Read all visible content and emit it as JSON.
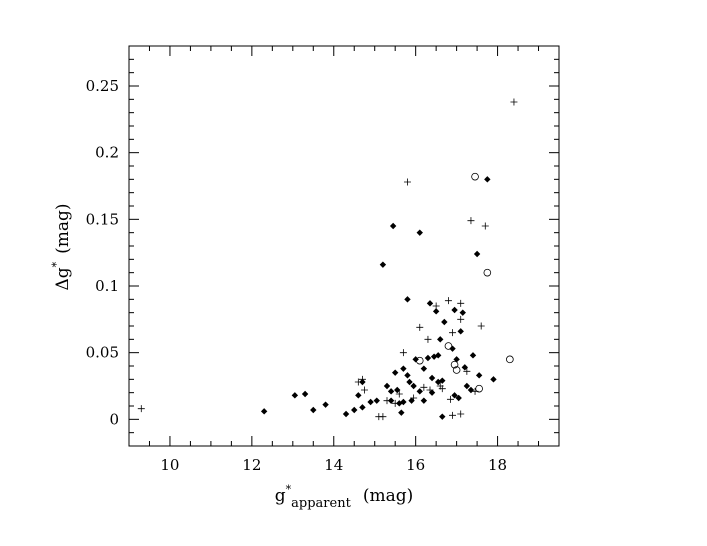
{
  "chart_data": {
    "type": "scatter",
    "title": "",
    "xlabel": {
      "base": "g",
      "sup": "*",
      "sub": "apparent",
      "unit": "(mag)"
    },
    "ylabel": {
      "base": "Δg",
      "sup": "*",
      "unit": "(mag)"
    },
    "xlim": [
      9,
      19.5
    ],
    "ylim": [
      -0.02,
      0.28
    ],
    "x_ticks": [
      {
        "value": 10,
        "label": "10"
      },
      {
        "value": 12,
        "label": "12"
      },
      {
        "value": 14,
        "label": "14"
      },
      {
        "value": 16,
        "label": "16"
      },
      {
        "value": 18,
        "label": "18"
      }
    ],
    "y_ticks": [
      {
        "value": 0,
        "label": "0"
      },
      {
        "value": 0.05,
        "label": "0.05"
      },
      {
        "value": 0.1,
        "label": "0.1"
      },
      {
        "value": 0.15,
        "label": "0.15"
      },
      {
        "value": 0.2,
        "label": "0.2"
      },
      {
        "value": 0.25,
        "label": "0.25"
      }
    ],
    "grid": false,
    "legend": "none",
    "series": [
      {
        "marker": "diamond",
        "points": [
          [
            12.3,
            0.006
          ],
          [
            13.05,
            0.018
          ],
          [
            13.3,
            0.019
          ],
          [
            13.5,
            0.007
          ],
          [
            13.8,
            0.011
          ],
          [
            14.3,
            0.004
          ],
          [
            14.5,
            0.007
          ],
          [
            14.6,
            0.018
          ],
          [
            14.7,
            0.009
          ],
          [
            14.7,
            0.028
          ],
          [
            14.9,
            0.013
          ],
          [
            15.05,
            0.014
          ],
          [
            15.2,
            0.116
          ],
          [
            15.3,
            0.025
          ],
          [
            15.4,
            0.014
          ],
          [
            15.4,
            0.021
          ],
          [
            15.45,
            0.145
          ],
          [
            15.5,
            0.035
          ],
          [
            15.55,
            0.022
          ],
          [
            15.6,
            0.012
          ],
          [
            15.65,
            0.005
          ],
          [
            15.7,
            0.013
          ],
          [
            15.7,
            0.038
          ],
          [
            15.8,
            0.09
          ],
          [
            15.8,
            0.033
          ],
          [
            15.85,
            0.028
          ],
          [
            15.9,
            0.014
          ],
          [
            15.95,
            0.025
          ],
          [
            16.0,
            0.045
          ],
          [
            16.1,
            0.021
          ],
          [
            16.1,
            0.14
          ],
          [
            16.2,
            0.038
          ],
          [
            16.2,
            0.014
          ],
          [
            16.3,
            0.046
          ],
          [
            16.35,
            0.087
          ],
          [
            16.4,
            0.031
          ],
          [
            16.4,
            0.02
          ],
          [
            16.45,
            0.047
          ],
          [
            16.5,
            0.081
          ],
          [
            16.55,
            0.028
          ],
          [
            16.55,
            0.048
          ],
          [
            16.6,
            0.06
          ],
          [
            16.65,
            0.002
          ],
          [
            16.65,
            0.029
          ],
          [
            16.7,
            0.073
          ],
          [
            16.9,
            0.053
          ],
          [
            16.95,
            0.082
          ],
          [
            16.95,
            0.018
          ],
          [
            17.0,
            0.045
          ],
          [
            17.05,
            0.016
          ],
          [
            17.1,
            0.066
          ],
          [
            17.15,
            0.08
          ],
          [
            17.2,
            0.039
          ],
          [
            17.25,
            0.025
          ],
          [
            17.35,
            0.022
          ],
          [
            17.4,
            0.048
          ],
          [
            17.5,
            0.124
          ],
          [
            17.55,
            0.033
          ],
          [
            17.75,
            0.18
          ],
          [
            17.9,
            0.03
          ]
        ]
      },
      {
        "marker": "plus",
        "points": [
          [
            9.3,
            0.008
          ],
          [
            14.6,
            0.028
          ],
          [
            14.7,
            0.03
          ],
          [
            14.75,
            0.022
          ],
          [
            15.1,
            0.002
          ],
          [
            15.2,
            0.002
          ],
          [
            15.3,
            0.014
          ],
          [
            15.5,
            0.012
          ],
          [
            15.6,
            0.019
          ],
          [
            15.7,
            0.05
          ],
          [
            15.8,
            0.178
          ],
          [
            15.95,
            0.016
          ],
          [
            16.1,
            0.069
          ],
          [
            16.2,
            0.024
          ],
          [
            16.3,
            0.06
          ],
          [
            16.35,
            0.022
          ],
          [
            16.5,
            0.085
          ],
          [
            16.6,
            0.025
          ],
          [
            16.65,
            0.023
          ],
          [
            16.8,
            0.089
          ],
          [
            16.85,
            0.015
          ],
          [
            16.9,
            0.065
          ],
          [
            16.9,
            0.003
          ],
          [
            17.1,
            0.087
          ],
          [
            17.1,
            0.004
          ],
          [
            17.1,
            0.075
          ],
          [
            17.25,
            0.036
          ],
          [
            17.35,
            0.149
          ],
          [
            17.45,
            0.021
          ],
          [
            17.6,
            0.07
          ],
          [
            17.7,
            0.145
          ],
          [
            18.4,
            0.238
          ]
        ]
      },
      {
        "marker": "circle",
        "points": [
          [
            16.1,
            0.044
          ],
          [
            16.8,
            0.055
          ],
          [
            16.95,
            0.041
          ],
          [
            17.0,
            0.037
          ],
          [
            17.45,
            0.182
          ],
          [
            17.55,
            0.023
          ],
          [
            17.75,
            0.11
          ],
          [
            18.3,
            0.045
          ]
        ]
      }
    ]
  }
}
